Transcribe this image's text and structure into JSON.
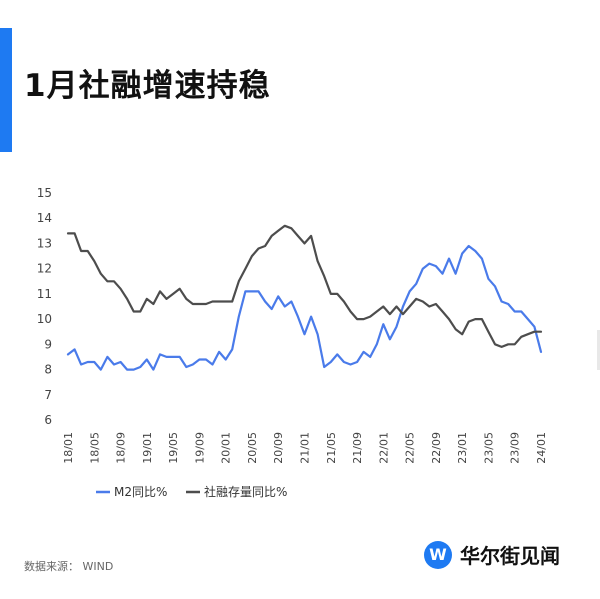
{
  "header": {
    "title": "1月社融增速持稳",
    "accent_color": "#1E7AF2"
  },
  "source_note": "数据来源： WIND",
  "logo": {
    "text": "华尔街见闻",
    "mark": "W",
    "color": "#1E7AF2",
    "icon": "wallstreetcn-logo-icon"
  },
  "chart_data": {
    "type": "line",
    "title": "",
    "xlabel": "",
    "ylabel": "",
    "ylim": [
      6,
      15
    ],
    "yticks": [
      6,
      7,
      8,
      9,
      10,
      11,
      12,
      13,
      14,
      15
    ],
    "xtick_labels": [
      "18/01",
      "18/05",
      "18/09",
      "19/01",
      "19/05",
      "19/09",
      "20/01",
      "20/05",
      "20/09",
      "21/01",
      "21/05",
      "21/09",
      "22/01",
      "22/05",
      "22/09",
      "23/01",
      "23/05",
      "23/09",
      "24/01"
    ],
    "grid": false,
    "legend_position": "bottom-left",
    "x": [
      "2018-01",
      "2018-02",
      "2018-03",
      "2018-04",
      "2018-05",
      "2018-06",
      "2018-07",
      "2018-08",
      "2018-09",
      "2018-10",
      "2018-11",
      "2018-12",
      "2019-01",
      "2019-02",
      "2019-03",
      "2019-04",
      "2019-05",
      "2019-06",
      "2019-07",
      "2019-08",
      "2019-09",
      "2019-10",
      "2019-11",
      "2019-12",
      "2020-01",
      "2020-02",
      "2020-03",
      "2020-04",
      "2020-05",
      "2020-06",
      "2020-07",
      "2020-08",
      "2020-09",
      "2020-10",
      "2020-11",
      "2020-12",
      "2021-01",
      "2021-02",
      "2021-03",
      "2021-04",
      "2021-05",
      "2021-06",
      "2021-07",
      "2021-08",
      "2021-09",
      "2021-10",
      "2021-11",
      "2021-12",
      "2022-01",
      "2022-02",
      "2022-03",
      "2022-04",
      "2022-05",
      "2022-06",
      "2022-07",
      "2022-08",
      "2022-09",
      "2022-10",
      "2022-11",
      "2022-12",
      "2023-01",
      "2023-02",
      "2023-03",
      "2023-04",
      "2023-05",
      "2023-06",
      "2023-07",
      "2023-08",
      "2023-09",
      "2023-10",
      "2023-11",
      "2023-12",
      "2024-01"
    ],
    "series": [
      {
        "name": "M2同比%",
        "color": "#4A7BEA",
        "values": [
          8.6,
          8.8,
          8.2,
          8.3,
          8.3,
          8.0,
          8.5,
          8.2,
          8.3,
          8.0,
          8.0,
          8.1,
          8.4,
          8.0,
          8.6,
          8.5,
          8.5,
          8.5,
          8.1,
          8.2,
          8.4,
          8.4,
          8.2,
          8.7,
          8.4,
          8.8,
          10.1,
          11.1,
          11.1,
          11.1,
          10.7,
          10.4,
          10.9,
          10.5,
          10.7,
          10.1,
          9.4,
          10.1,
          9.4,
          8.1,
          8.3,
          8.6,
          8.3,
          8.2,
          8.3,
          8.7,
          8.5,
          9.0,
          9.8,
          9.2,
          9.7,
          10.5,
          11.1,
          11.4,
          12.0,
          12.2,
          12.1,
          11.8,
          12.4,
          11.8,
          12.6,
          12.9,
          12.7,
          12.4,
          11.6,
          11.3,
          10.7,
          10.6,
          10.3,
          10.3,
          10.0,
          9.7,
          8.7
        ]
      },
      {
        "name": "社融存量同比%",
        "color": "#4D4D4D",
        "values": [
          13.4,
          13.4,
          12.7,
          12.7,
          12.3,
          11.8,
          11.5,
          11.5,
          11.2,
          10.8,
          10.3,
          10.3,
          10.8,
          10.6,
          11.1,
          10.8,
          11.0,
          11.2,
          10.8,
          10.6,
          10.6,
          10.6,
          10.7,
          10.7,
          10.7,
          10.7,
          11.5,
          12.0,
          12.5,
          12.8,
          12.9,
          13.3,
          13.5,
          13.7,
          13.6,
          13.3,
          13.0,
          13.3,
          12.3,
          11.7,
          11.0,
          11.0,
          10.7,
          10.3,
          10.0,
          10.0,
          10.1,
          10.3,
          10.5,
          10.2,
          10.5,
          10.2,
          10.5,
          10.8,
          10.7,
          10.5,
          10.6,
          10.3,
          10.0,
          9.6,
          9.4,
          9.9,
          10.0,
          10.0,
          9.5,
          9.0,
          8.9,
          9.0,
          9.0,
          9.3,
          9.4,
          9.5,
          9.5
        ]
      }
    ]
  }
}
